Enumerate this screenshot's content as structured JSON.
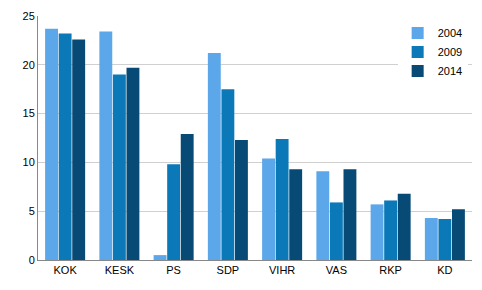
{
  "chart_data": {
    "type": "bar",
    "categories": [
      "KOK",
      "KESK",
      "PS",
      "SDP",
      "VIHR",
      "VAS",
      "RKP",
      "KD"
    ],
    "series": [
      {
        "name": "2004",
        "color": "#5ca6ea",
        "values": [
          23.7,
          23.4,
          0.5,
          21.2,
          10.4,
          9.1,
          5.7,
          4.3
        ]
      },
      {
        "name": "2009",
        "color": "#0b78b8",
        "values": [
          23.2,
          19.0,
          9.8,
          17.5,
          12.4,
          5.9,
          6.1,
          4.2
        ]
      },
      {
        "name": "2014",
        "color": "#064a75",
        "values": [
          22.6,
          19.7,
          12.9,
          12.3,
          9.3,
          9.3,
          6.8,
          5.2
        ]
      }
    ],
    "ylim": [
      0,
      25
    ],
    "yticks": [
      0,
      5,
      10,
      15,
      20,
      25
    ],
    "grid": true,
    "legend": "top right"
  }
}
